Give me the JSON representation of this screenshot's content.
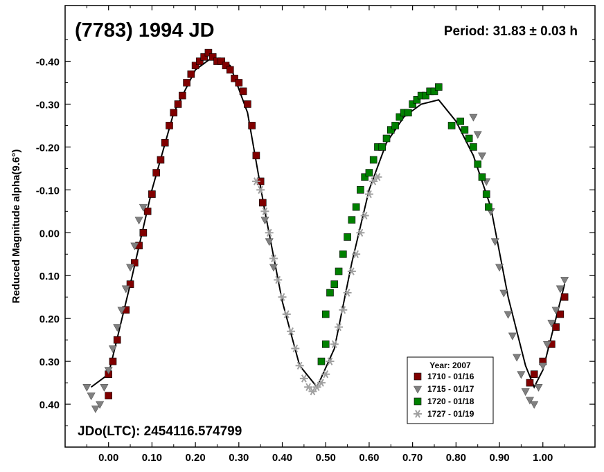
{
  "chart_data": {
    "type": "scatter",
    "title": "(7783) 1994 JD",
    "period_label": "Period: 31.83 ± 0.03 h",
    "ylabel": "Reduced Magnitude alpha(9.6°)",
    "jdo_label": "JDo(LTC): 2454116.574799",
    "xlim": [
      -0.1,
      1.12
    ],
    "ylim": [
      0.5,
      -0.53
    ],
    "y_inverted": true,
    "x_ticks": [
      0.0,
      0.1,
      0.2,
      0.3,
      0.4,
      0.5,
      0.6,
      0.7,
      0.8,
      0.9,
      1.0
    ],
    "x_tick_labels": [
      "0.00",
      "0.10",
      "0.20",
      "0.30",
      "0.40",
      "0.50",
      "0.60",
      "0.70",
      "0.80",
      "0.90",
      "1.00"
    ],
    "y_ticks": [
      -0.4,
      -0.3,
      -0.2,
      -0.1,
      0.0,
      0.1,
      0.2,
      0.3,
      0.4
    ],
    "y_tick_labels": [
      "-0.40",
      "-0.30",
      "-0.20",
      "-0.10",
      "0.00",
      "0.10",
      "0.20",
      "0.30",
      "0.40"
    ],
    "grid": false,
    "legend": {
      "title": "Year: 2007",
      "placement": "bottom-right",
      "entries": [
        {
          "label": "1710 - 01/16",
          "marker": "square",
          "color": "#800000"
        },
        {
          "label": "1715 - 01/17",
          "marker": "triangle-down",
          "color": "#808080"
        },
        {
          "label": "1720 - 01/18",
          "marker": "square",
          "color": "#008000"
        },
        {
          "label": "1727 - 01/19",
          "marker": "asterisk",
          "color": "#a0a0a0"
        }
      ]
    },
    "fit_curve": [
      [
        -0.04,
        0.36
      ],
      [
        0.0,
        0.33
      ],
      [
        0.05,
        0.12
      ],
      [
        0.1,
        -0.1
      ],
      [
        0.15,
        -0.28
      ],
      [
        0.2,
        -0.38
      ],
      [
        0.24,
        -0.41
      ],
      [
        0.28,
        -0.39
      ],
      [
        0.32,
        -0.28
      ],
      [
        0.36,
        -0.05
      ],
      [
        0.4,
        0.16
      ],
      [
        0.44,
        0.31
      ],
      [
        0.48,
        0.36
      ],
      [
        0.52,
        0.27
      ],
      [
        0.56,
        0.07
      ],
      [
        0.6,
        -0.1
      ],
      [
        0.64,
        -0.21
      ],
      [
        0.68,
        -0.27
      ],
      [
        0.72,
        -0.3
      ],
      [
        0.76,
        -0.31
      ],
      [
        0.8,
        -0.26
      ],
      [
        0.84,
        -0.18
      ],
      [
        0.88,
        -0.06
      ],
      [
        0.92,
        0.15
      ],
      [
        0.96,
        0.31
      ],
      [
        0.98,
        0.36
      ],
      [
        1.0,
        0.32
      ],
      [
        1.05,
        0.12
      ]
    ],
    "series": [
      {
        "name": "1710 - 01/16",
        "points": [
          [
            0.0,
            0.38
          ],
          [
            0.0,
            0.33
          ],
          [
            0.01,
            0.3
          ],
          [
            0.02,
            0.25
          ],
          [
            0.04,
            0.18
          ],
          [
            0.05,
            0.12
          ],
          [
            0.06,
            0.07
          ],
          [
            0.07,
            0.03
          ],
          [
            0.08,
            0.0
          ],
          [
            0.09,
            -0.05
          ],
          [
            0.1,
            -0.09
          ],
          [
            0.11,
            -0.14
          ],
          [
            0.12,
            -0.17
          ],
          [
            0.13,
            -0.21
          ],
          [
            0.14,
            -0.25
          ],
          [
            0.15,
            -0.28
          ],
          [
            0.16,
            -0.3
          ],
          [
            0.17,
            -0.32
          ],
          [
            0.18,
            -0.35
          ],
          [
            0.19,
            -0.37
          ],
          [
            0.2,
            -0.39
          ],
          [
            0.21,
            -0.4
          ],
          [
            0.22,
            -0.41
          ],
          [
            0.23,
            -0.42
          ],
          [
            0.24,
            -0.41
          ],
          [
            0.25,
            -0.4
          ],
          [
            0.26,
            -0.4
          ],
          [
            0.27,
            -0.39
          ],
          [
            0.28,
            -0.38
          ],
          [
            0.29,
            -0.36
          ],
          [
            0.3,
            -0.35
          ],
          [
            0.31,
            -0.33
          ],
          [
            0.32,
            -0.3
          ],
          [
            0.33,
            -0.25
          ],
          [
            0.34,
            -0.18
          ],
          [
            0.35,
            -0.12
          ],
          [
            0.355,
            -0.07
          ],
          [
            0.97,
            0.35
          ],
          [
            0.98,
            0.33
          ],
          [
            1.0,
            0.3
          ],
          [
            1.02,
            0.26
          ],
          [
            1.03,
            0.22
          ],
          [
            1.04,
            0.19
          ],
          [
            1.05,
            0.15
          ]
        ]
      },
      {
        "name": "1715 - 01/17",
        "points": [
          [
            -0.05,
            0.36
          ],
          [
            -0.04,
            0.38
          ],
          [
            -0.03,
            0.41
          ],
          [
            -0.02,
            0.4
          ],
          [
            -0.01,
            0.36
          ],
          [
            0.0,
            0.32
          ],
          [
            0.01,
            0.27
          ],
          [
            0.02,
            0.22
          ],
          [
            0.03,
            0.18
          ],
          [
            0.04,
            0.13
          ],
          [
            0.05,
            0.08
          ],
          [
            0.06,
            0.03
          ],
          [
            0.07,
            -0.03
          ],
          [
            0.08,
            -0.06
          ],
          [
            0.36,
            -0.03
          ],
          [
            0.37,
            0.02
          ],
          [
            0.38,
            0.08
          ],
          [
            0.84,
            -0.27
          ],
          [
            0.85,
            -0.23
          ],
          [
            0.86,
            -0.18
          ],
          [
            0.87,
            -0.12
          ],
          [
            0.88,
            -0.05
          ],
          [
            0.89,
            0.02
          ],
          [
            0.9,
            0.08
          ],
          [
            0.91,
            0.14
          ],
          [
            0.92,
            0.19
          ],
          [
            0.93,
            0.24
          ],
          [
            0.94,
            0.29
          ],
          [
            0.95,
            0.33
          ],
          [
            0.96,
            0.37
          ],
          [
            0.97,
            0.39
          ],
          [
            0.98,
            0.4
          ],
          [
            0.99,
            0.36
          ],
          [
            1.0,
            0.31
          ],
          [
            1.01,
            0.26
          ],
          [
            1.02,
            0.21
          ],
          [
            1.03,
            0.18
          ],
          [
            1.04,
            0.13
          ],
          [
            1.05,
            0.11
          ]
        ]
      },
      {
        "name": "1720 - 01/18",
        "points": [
          [
            0.49,
            0.3
          ],
          [
            0.5,
            0.26
          ],
          [
            0.5,
            0.19
          ],
          [
            0.51,
            0.14
          ],
          [
            0.52,
            0.12
          ],
          [
            0.53,
            0.09
          ],
          [
            0.54,
            0.05
          ],
          [
            0.55,
            0.01
          ],
          [
            0.56,
            -0.03
          ],
          [
            0.57,
            -0.06
          ],
          [
            0.58,
            -0.1
          ],
          [
            0.59,
            -0.13
          ],
          [
            0.6,
            -0.14
          ],
          [
            0.61,
            -0.17
          ],
          [
            0.62,
            -0.2
          ],
          [
            0.63,
            -0.2
          ],
          [
            0.64,
            -0.22
          ],
          [
            0.65,
            -0.24
          ],
          [
            0.66,
            -0.25
          ],
          [
            0.67,
            -0.27
          ],
          [
            0.68,
            -0.28
          ],
          [
            0.69,
            -0.28
          ],
          [
            0.7,
            -0.3
          ],
          [
            0.71,
            -0.31
          ],
          [
            0.72,
            -0.32
          ],
          [
            0.73,
            -0.32
          ],
          [
            0.74,
            -0.33
          ],
          [
            0.75,
            -0.33
          ],
          [
            0.76,
            -0.34
          ],
          [
            0.79,
            -0.25
          ],
          [
            0.81,
            -0.26
          ],
          [
            0.82,
            -0.24
          ],
          [
            0.83,
            -0.22
          ],
          [
            0.84,
            -0.2
          ],
          [
            0.85,
            -0.16
          ],
          [
            0.86,
            -0.13
          ],
          [
            0.87,
            -0.09
          ],
          [
            0.875,
            -0.06
          ]
        ]
      },
      {
        "name": "1727 - 01/19",
        "points": [
          [
            0.34,
            -0.12
          ],
          [
            0.35,
            -0.1
          ],
          [
            0.36,
            -0.05
          ],
          [
            0.37,
            0.0
          ],
          [
            0.38,
            0.06
          ],
          [
            0.39,
            0.11
          ],
          [
            0.4,
            0.15
          ],
          [
            0.41,
            0.19
          ],
          [
            0.42,
            0.23
          ],
          [
            0.43,
            0.27
          ],
          [
            0.44,
            0.31
          ],
          [
            0.45,
            0.34
          ],
          [
            0.46,
            0.36
          ],
          [
            0.47,
            0.37
          ],
          [
            0.48,
            0.36
          ],
          [
            0.49,
            0.35
          ],
          [
            0.5,
            0.33
          ],
          [
            0.51,
            0.3
          ],
          [
            0.52,
            0.26
          ],
          [
            0.53,
            0.22
          ],
          [
            0.54,
            0.18
          ],
          [
            0.55,
            0.14
          ],
          [
            0.56,
            0.09
          ],
          [
            0.57,
            0.05
          ],
          [
            0.58,
            0.0
          ],
          [
            0.59,
            -0.04
          ],
          [
            0.6,
            -0.09
          ],
          [
            0.61,
            -0.12
          ],
          [
            0.62,
            -0.13
          ]
        ]
      }
    ]
  }
}
